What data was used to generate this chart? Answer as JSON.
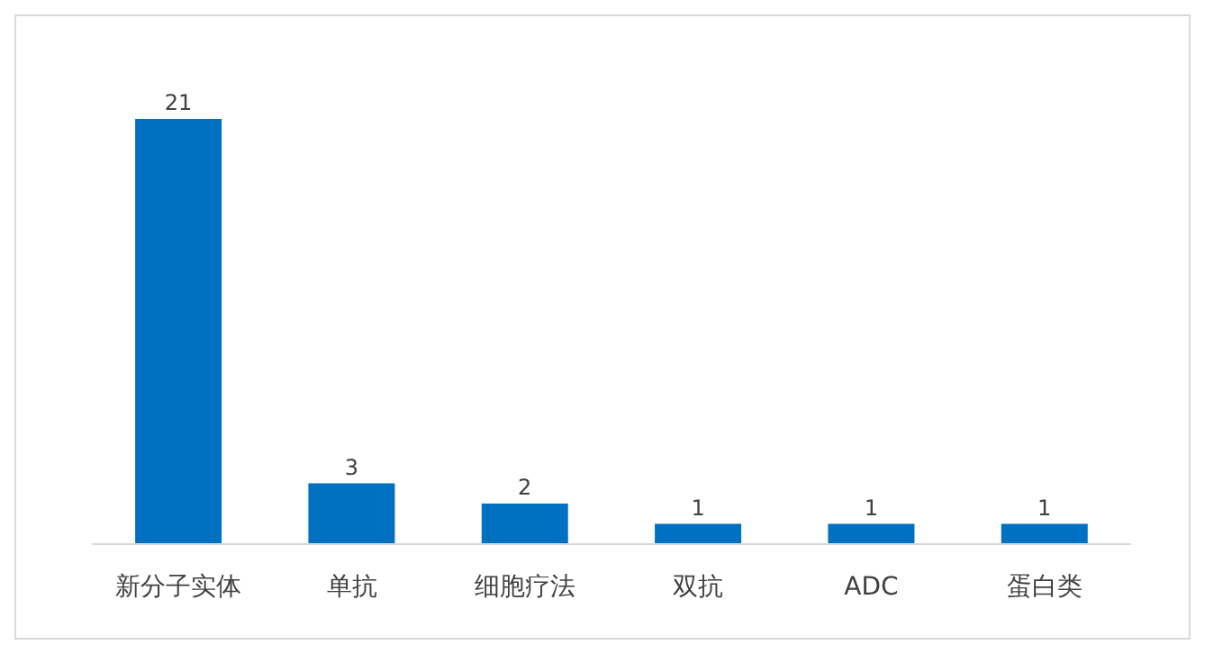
{
  "chart_data": {
    "type": "bar",
    "categories": [
      "新分子实体",
      "单抗",
      "细胞疗法",
      "双抗",
      "ADC",
      "蛋白类"
    ],
    "values": [
      21,
      3,
      2,
      1,
      1,
      1
    ],
    "color": "#0070c0",
    "data_labels": true
  }
}
